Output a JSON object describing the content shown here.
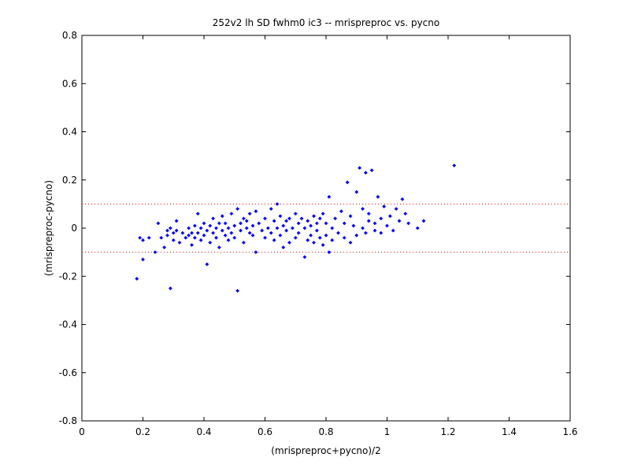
{
  "chart_data": {
    "type": "scatter",
    "title": "252v2 lh SD fwhm0 ic3 -- mrispreproc vs. pycno",
    "xlabel": "(mrispreproc+pycno)/2",
    "ylabel": "(mrispreproc-pycno)",
    "xlim": [
      0,
      1.6
    ],
    "ylim": [
      -0.8,
      0.8
    ],
    "xticks": [
      "0",
      "0.2",
      "0.4",
      "0.6",
      "0.8",
      "1",
      "1.2",
      "1.4",
      "1.6"
    ],
    "yticks": [
      "-0.8",
      "-0.6",
      "-0.4",
      "-0.2",
      "0",
      "0.2",
      "0.4",
      "0.6",
      "0.8"
    ],
    "grid": false,
    "reference_lines": [
      0.1,
      -0.1
    ],
    "point_color": "#0000ff",
    "reference_line_color": "#ff0000",
    "points": [
      [
        0.18,
        -0.21
      ],
      [
        0.19,
        -0.04
      ],
      [
        0.2,
        -0.13
      ],
      [
        0.2,
        -0.05
      ],
      [
        0.22,
        -0.04
      ],
      [
        0.24,
        -0.1
      ],
      [
        0.25,
        0.02
      ],
      [
        0.26,
        -0.04
      ],
      [
        0.27,
        -0.08
      ],
      [
        0.28,
        -0.01
      ],
      [
        0.28,
        -0.03
      ],
      [
        0.29,
        -0.25
      ],
      [
        0.29,
        0.0
      ],
      [
        0.3,
        -0.02
      ],
      [
        0.3,
        -0.05
      ],
      [
        0.31,
        0.03
      ],
      [
        0.31,
        -0.01
      ],
      [
        0.32,
        -0.06
      ],
      [
        0.33,
        -0.02
      ],
      [
        0.34,
        -0.04
      ],
      [
        0.35,
        -0.03
      ],
      [
        0.35,
        0.0
      ],
      [
        0.36,
        -0.07
      ],
      [
        0.36,
        -0.02
      ],
      [
        0.37,
        0.01
      ],
      [
        0.37,
        -0.04
      ],
      [
        0.38,
        0.06
      ],
      [
        0.38,
        -0.02
      ],
      [
        0.39,
        -0.05
      ],
      [
        0.39,
        0.0
      ],
      [
        0.4,
        -0.03
      ],
      [
        0.4,
        0.02
      ],
      [
        0.41,
        -0.15
      ],
      [
        0.41,
        -0.01
      ],
      [
        0.42,
        0.01
      ],
      [
        0.42,
        -0.06
      ],
      [
        0.43,
        0.04
      ],
      [
        0.43,
        -0.02
      ],
      [
        0.44,
        0.0
      ],
      [
        0.44,
        -0.04
      ],
      [
        0.45,
        0.02
      ],
      [
        0.45,
        -0.08
      ],
      [
        0.46,
        -0.01
      ],
      [
        0.46,
        0.05
      ],
      [
        0.47,
        -0.03
      ],
      [
        0.47,
        0.02
      ],
      [
        0.48,
        0.0
      ],
      [
        0.48,
        -0.05
      ],
      [
        0.49,
        0.06
      ],
      [
        0.49,
        -0.02
      ],
      [
        0.5,
        0.01
      ],
      [
        0.5,
        -0.04
      ],
      [
        0.51,
        0.08
      ],
      [
        0.51,
        -0.26
      ],
      [
        0.52,
        0.02
      ],
      [
        0.52,
        -0.01
      ],
      [
        0.53,
        0.04
      ],
      [
        0.53,
        -0.06
      ],
      [
        0.54,
        0.0
      ],
      [
        0.54,
        0.03
      ],
      [
        0.55,
        -0.02
      ],
      [
        0.55,
        0.06
      ],
      [
        0.56,
        0.01
      ],
      [
        0.56,
        -0.03
      ],
      [
        0.57,
        0.07
      ],
      [
        0.57,
        -0.1
      ],
      [
        0.58,
        0.02
      ],
      [
        0.59,
        -0.01
      ],
      [
        0.6,
        0.04
      ],
      [
        0.6,
        -0.04
      ],
      [
        0.61,
        0.0
      ],
      [
        0.62,
        0.08
      ],
      [
        0.62,
        -0.02
      ],
      [
        0.63,
        0.03
      ],
      [
        0.63,
        -0.05
      ],
      [
        0.64,
        0.1
      ],
      [
        0.64,
        0.0
      ],
      [
        0.65,
        -0.03
      ],
      [
        0.65,
        0.05
      ],
      [
        0.66,
        0.01
      ],
      [
        0.66,
        -0.08
      ],
      [
        0.67,
        0.03
      ],
      [
        0.67,
        -0.01
      ],
      [
        0.68,
        -0.06
      ],
      [
        0.68,
        0.04
      ],
      [
        0.69,
        0.0
      ],
      [
        0.7,
        -0.04
      ],
      [
        0.7,
        0.06
      ],
      [
        0.71,
        0.02
      ],
      [
        0.71,
        -0.02
      ],
      [
        0.72,
        0.04
      ],
      [
        0.73,
        -0.12
      ],
      [
        0.73,
        0.0
      ],
      [
        0.74,
        0.03
      ],
      [
        0.74,
        -0.05
      ],
      [
        0.75,
        0.01
      ],
      [
        0.75,
        -0.03
      ],
      [
        0.76,
        0.05
      ],
      [
        0.76,
        -0.06
      ],
      [
        0.77,
        0.02
      ],
      [
        0.77,
        -0.01
      ],
      [
        0.78,
        0.04
      ],
      [
        0.78,
        -0.04
      ],
      [
        0.79,
        0.06
      ],
      [
        0.79,
        -0.07
      ],
      [
        0.8,
        0.02
      ],
      [
        0.8,
        -0.03
      ],
      [
        0.81,
        0.13
      ],
      [
        0.81,
        -0.1
      ],
      [
        0.82,
        0.0
      ],
      [
        0.82,
        -0.05
      ],
      [
        0.83,
        0.04
      ],
      [
        0.84,
        -0.02
      ],
      [
        0.85,
        0.07
      ],
      [
        0.86,
        0.02
      ],
      [
        0.86,
        -0.04
      ],
      [
        0.87,
        0.19
      ],
      [
        0.88,
        0.05
      ],
      [
        0.88,
        -0.06
      ],
      [
        0.89,
        0.01
      ],
      [
        0.9,
        0.15
      ],
      [
        0.9,
        -0.03
      ],
      [
        0.91,
        0.25
      ],
      [
        0.92,
        0.08
      ],
      [
        0.92,
        0.0
      ],
      [
        0.93,
        0.23
      ],
      [
        0.93,
        -0.02
      ],
      [
        0.94,
        0.03
      ],
      [
        0.94,
        0.06
      ],
      [
        0.95,
        0.24
      ],
      [
        0.96,
        0.02
      ],
      [
        0.96,
        -0.01
      ],
      [
        0.97,
        0.13
      ],
      [
        0.98,
        0.04
      ],
      [
        0.98,
        -0.02
      ],
      [
        0.99,
        0.09
      ],
      [
        1.0,
        0.01
      ],
      [
        1.01,
        0.05
      ],
      [
        1.02,
        -0.01
      ],
      [
        1.03,
        0.08
      ],
      [
        1.04,
        0.03
      ],
      [
        1.05,
        0.12
      ],
      [
        1.06,
        0.06
      ],
      [
        1.07,
        0.02
      ],
      [
        1.1,
        0.0
      ],
      [
        1.12,
        0.03
      ],
      [
        1.22,
        0.26
      ]
    ]
  }
}
